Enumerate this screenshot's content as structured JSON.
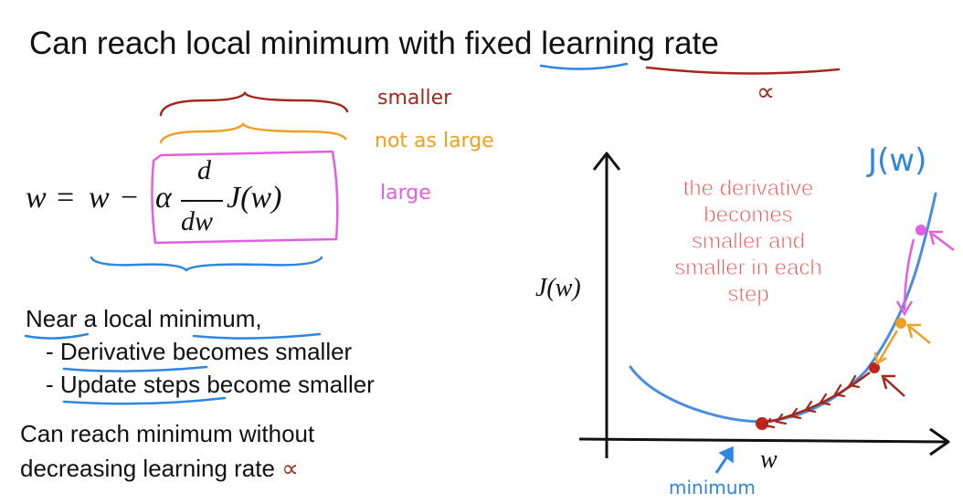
{
  "title": {
    "prefix": "Can reach local minimum with ",
    "fixed": "fixed",
    "space": " ",
    "learning_rate": "learning rate",
    "alpha_note": "∝"
  },
  "braces": {
    "smaller": "smaller",
    "not_as_large": "not as large",
    "large": "large"
  },
  "formula": {
    "lhs": "w",
    "equals": "=",
    "w": "w",
    "minus": "−",
    "alpha": "α",
    "frac_num": "d",
    "frac_den": "dw",
    "cost": "J(w)"
  },
  "near_minimum": {
    "line1_a": "Near",
    "line1_b": " a local ",
    "line1_c": "minimum",
    "line1_d": ",",
    "line2_a": "- ",
    "line2_b": "Derivative",
    "line2_c": " becomes smaller",
    "line3_a": "- ",
    "line3_b": "Update steps",
    "line3_c": " become smaller"
  },
  "conclusion": {
    "line1": "Can reach minimum without",
    "line2": "decreasing learning rate ",
    "alpha": "∝"
  },
  "graph": {
    "y_label": "J(w)",
    "x_label": "w",
    "curve_label": "J(w)",
    "minimum_label": "minimum",
    "callout": [
      "the derivative",
      "becomes",
      "smaller and",
      "smaller in each",
      "step"
    ]
  },
  "colors": {
    "smaller": "#a3271b",
    "not_as_large": "#f0a020",
    "large": "#e060e0",
    "blue": "#2e86de",
    "curve": "#4a8de0",
    "callout": "#ff3b3b"
  }
}
